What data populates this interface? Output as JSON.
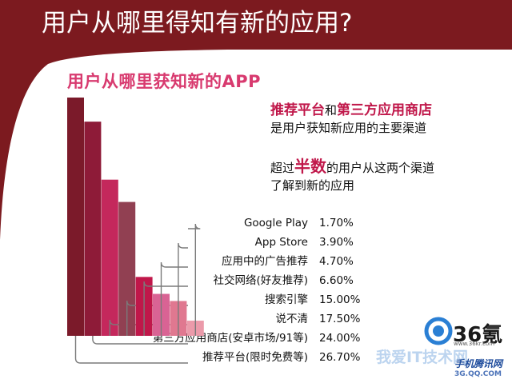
{
  "page": {
    "title": "用户从哪里得知有新的应用?"
  },
  "callout": {
    "line1_part1": "推荐平台",
    "line1_part2": "和",
    "line1_part3": "第三方应用商店",
    "line2": "是用户获知新应用的主要渠道",
    "line3_part1": "超过",
    "line3_part2": "半数",
    "line3_part3": "的用户从这两个渠道",
    "line4": "了解到新的应用"
  },
  "logo": {
    "text": "36氪",
    "sub": "www.36kr.com"
  },
  "watermark": {
    "text1": "我爱IT技术网",
    "text2": "手机腾讯网",
    "text3": "3G.QQ.COM"
  },
  "colors": {
    "banner": "#7c1a1f",
    "accent": "#c0174a"
  },
  "chart_data": {
    "type": "bar",
    "title": "用户从哪里获知新的APP",
    "categories": [
      "推荐平台(限时免费等)",
      "第三方应用商店(安卓市场/91等)",
      "说不清",
      "搜索引擎",
      "社交网络(好友推荐)",
      "应用中的广告推荐",
      "App Store",
      "Google Play"
    ],
    "values": [
      26.7,
      24.0,
      17.5,
      15.0,
      6.6,
      4.7,
      3.9,
      1.7
    ],
    "value_labels": [
      "26.70%",
      "24.00%",
      "17.50%",
      "15.00%",
      "6.60%",
      "4.70%",
      "3.90%",
      "1.70%"
    ],
    "colors": [
      "#7b1a2a",
      "#8e1b38",
      "#c4285c",
      "#914052",
      "#c0174a",
      "#d96394",
      "#e07890",
      "#eb9aaa"
    ]
  }
}
